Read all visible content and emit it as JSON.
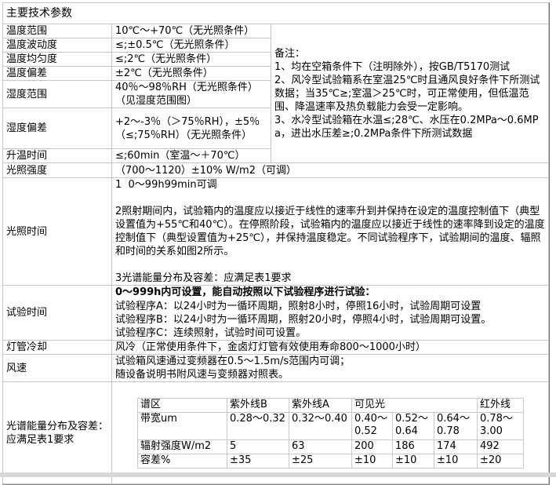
{
  "title": "主要技术参数",
  "spec_rows": [
    {
      "label": "温度范围",
      "value": "10℃～+70℃（无光照条件）"
    },
    {
      "label": "温度波动度",
      "value": "≤;±0.5℃（无光照条件）"
    },
    {
      "label": "温度均匀度",
      "value": "≤;2℃（无光照条件）"
    },
    {
      "label": "温度偏差",
      "value": "±2℃（无光照条件）"
    },
    {
      "label": "湿度范围",
      "value": "40％～98％RH（无光照条件）（见湿度范围图）"
    },
    {
      "label": "湿度偏差",
      "value": "+2～-3％（＞75％RH），±5％（≤;75％RH）（无光照条件）"
    },
    {
      "label": "升温时间",
      "value": "≤;60min（室温～＋70℃）"
    }
  ],
  "notes": {
    "heading": "备注：",
    "items": [
      "1、均在空箱条件下（注明除外），按GB/T5170测试",
      "2、风冷型试验箱系在室温25℃时且通风良好条件下所测试数据；当35℃≥;室温＞25℃时，可正常使用，但低温范围、降温速率及热负载能力会受一定影响。",
      "3、水冷型试验箱在水温≤;28℃、水压在0.2MPa～0.6MPa，进出水压差≥;0.2MPa条件下所测试数据"
    ]
  },
  "light_intensity": {
    "label": "光照强度",
    "value": "（700～1120）±10% W/m2（可调）"
  },
  "light_time": {
    "label": "光照时间",
    "line1": "1  0～99h99min可调",
    "para2": "2照射期间内，试验箱内的温度应以接近于线性的速率升到并保持在设定的温度控制值下（典型设置值为+55℃和40℃）。在停照阶段，试验箱内的温度应以接近于线性的速率降到设定的温度控制值下（典型设置值为+25℃），并保持温度稳定。不同试验程序下，试验期间的温度、辐照和时间的关系如图2所示。",
    "line3": "3光谱能量分布及容差：应满足表1要求"
  },
  "test_time": {
    "label": "试验时间",
    "headline": "0～999h内可设置，能自动按照以下试验程序进行试验：",
    "programs": [
      "试验程序A：以24小时为一循环周期，照射8小时，停照16小时，试验周期可设置",
      "试验程序B：以24小时为一循环周期，照射20小时，停照4小时，试验周期可设置。",
      "试验程序C：连续照射，试验时间可设置。"
    ]
  },
  "lamp_cooling": {
    "label": "灯管冷却",
    "value": "风冷（正常使用条件下，金卤灯灯管有效使用寿命800～1000小时）"
  },
  "wind_speed": {
    "label": "风速",
    "line1": "试验箱风速通过变频器在0.5～1.5m/s范围内可调；",
    "line2": "随设备说明书附风速与变频器对照表。"
  },
  "spectrum": {
    "label": "光谱能量分布及容差：应满足表1要求",
    "table": {
      "header": {
        "col0": "谱区",
        "uvb": "紫外线B",
        "uva": "紫外线A",
        "visible": "可见光",
        "infrared": "红外线"
      },
      "rows": [
        {
          "name": "带宽um",
          "values": [
            "0.28～0.32",
            "0.32～0.40",
            "0.40～0.52",
            "0.52～0.64",
            "0.64～0.78",
            "0.78～3.00"
          ]
        },
        {
          "name": "辐射强度W/m2",
          "values": [
            "5",
            "63",
            "200",
            "186",
            "174",
            "492"
          ]
        },
        {
          "name": "容差%",
          "values": [
            "±35",
            "±25",
            "±10",
            "±10",
            "±10",
            "±20"
          ]
        }
      ]
    }
  },
  "colors": {
    "text": "#000000",
    "border_inner": "#c6c6c6",
    "border_outer": "#6e6e6e",
    "page_strip": "#d8d8d8"
  }
}
